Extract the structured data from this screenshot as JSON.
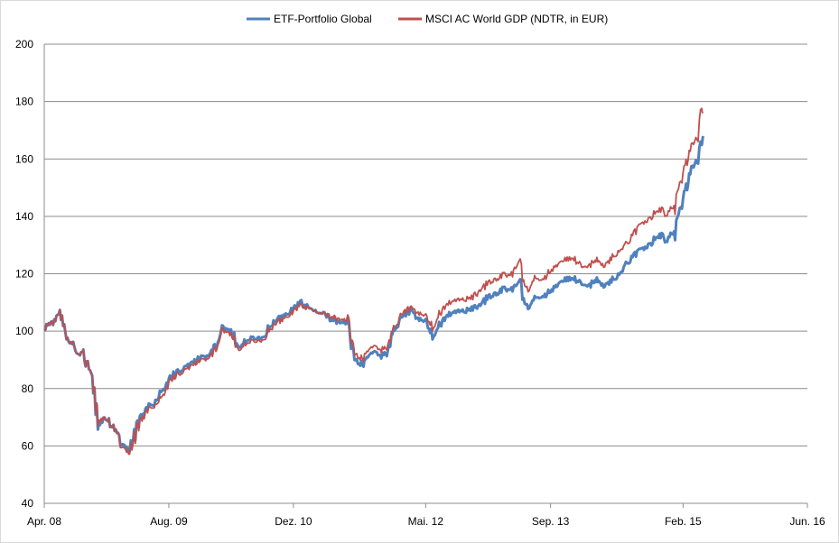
{
  "chart_data": {
    "type": "line",
    "title": "",
    "xlabel": "",
    "ylabel": "",
    "xlim": [
      "2008-04-01",
      "2016-06-01"
    ],
    "ylim": [
      40,
      200
    ],
    "y_ticks": [
      40,
      60,
      80,
      100,
      120,
      140,
      160,
      180,
      200
    ],
    "x_ticks": [
      {
        "label": "Apr. 08",
        "date": "2008-04-01"
      },
      {
        "label": "Aug. 09",
        "date": "2009-08-01"
      },
      {
        "label": "Dez. 10",
        "date": "2010-12-01"
      },
      {
        "label": "Mai. 12",
        "date": "2012-05-01"
      },
      {
        "label": "Sep. 13",
        "date": "2013-09-01"
      },
      {
        "label": "Feb. 15",
        "date": "2015-02-01"
      },
      {
        "label": "Jun. 16",
        "date": "2016-06-01"
      }
    ],
    "grid": "horizontal",
    "legend_position": "top",
    "series": [
      {
        "name": "ETF-Portfolio Global",
        "color": "#4f81bd",
        "points": [
          [
            "2008-04-01",
            101
          ],
          [
            "2008-05-01",
            103
          ],
          [
            "2008-06-01",
            106
          ],
          [
            "2008-07-01",
            98
          ],
          [
            "2008-08-01",
            93
          ],
          [
            "2008-09-01",
            92
          ],
          [
            "2008-10-01",
            84
          ],
          [
            "2008-11-01",
            68
          ],
          [
            "2008-12-01",
            70
          ],
          [
            "2009-01-01",
            65
          ],
          [
            "2009-02-01",
            60
          ],
          [
            "2009-03-01",
            58
          ],
          [
            "2009-04-01",
            67
          ],
          [
            "2009-05-01",
            73
          ],
          [
            "2009-06-01",
            75
          ],
          [
            "2009-07-01",
            79
          ],
          [
            "2009-08-01",
            83
          ],
          [
            "2009-09-01",
            86
          ],
          [
            "2009-10-01",
            87
          ],
          [
            "2009-11-01",
            89
          ],
          [
            "2009-12-01",
            91
          ],
          [
            "2010-01-01",
            91
          ],
          [
            "2010-02-01",
            95
          ],
          [
            "2010-03-01",
            101
          ],
          [
            "2010-04-01",
            100
          ],
          [
            "2010-05-01",
            95
          ],
          [
            "2010-06-01",
            97
          ],
          [
            "2010-07-01",
            98
          ],
          [
            "2010-08-01",
            97
          ],
          [
            "2010-09-01",
            102
          ],
          [
            "2010-10-01",
            104
          ],
          [
            "2010-11-01",
            106
          ],
          [
            "2010-12-01",
            108
          ],
          [
            "2011-01-01",
            110
          ],
          [
            "2011-02-01",
            108
          ],
          [
            "2011-03-01",
            107
          ],
          [
            "2011-04-01",
            106
          ],
          [
            "2011-05-01",
            104
          ],
          [
            "2011-06-01",
            103
          ],
          [
            "2011-07-01",
            103
          ],
          [
            "2011-08-01",
            90
          ],
          [
            "2011-09-01",
            88
          ],
          [
            "2011-10-01",
            93
          ],
          [
            "2011-11-01",
            91
          ],
          [
            "2011-12-01",
            93
          ],
          [
            "2012-01-01",
            100
          ],
          [
            "2012-02-01",
            105
          ],
          [
            "2012-03-01",
            107
          ],
          [
            "2012-04-01",
            104
          ],
          [
            "2012-05-01",
            103
          ],
          [
            "2012-06-01",
            98
          ],
          [
            "2012-07-01",
            103
          ],
          [
            "2012-08-01",
            106
          ],
          [
            "2012-09-01",
            107
          ],
          [
            "2012-10-01",
            107
          ],
          [
            "2012-11-01",
            108
          ],
          [
            "2012-12-01",
            109
          ],
          [
            "2013-01-01",
            112
          ],
          [
            "2013-02-01",
            113
          ],
          [
            "2013-03-01",
            115
          ],
          [
            "2013-04-01",
            114
          ],
          [
            "2013-05-01",
            117
          ],
          [
            "2013-06-01",
            108
          ],
          [
            "2013-07-01",
            112
          ],
          [
            "2013-08-01",
            112
          ],
          [
            "2013-09-01",
            114
          ],
          [
            "2013-10-01",
            117
          ],
          [
            "2013-11-01",
            118
          ],
          [
            "2013-12-01",
            119
          ],
          [
            "2014-01-01",
            116
          ],
          [
            "2014-02-01",
            116
          ],
          [
            "2014-03-01",
            118
          ],
          [
            "2014-04-01",
            116
          ],
          [
            "2014-05-01",
            118
          ],
          [
            "2014-06-01",
            120
          ],
          [
            "2014-07-01",
            124
          ],
          [
            "2014-08-01",
            127
          ],
          [
            "2014-09-01",
            129
          ],
          [
            "2014-10-01",
            131
          ],
          [
            "2014-11-01",
            134
          ],
          [
            "2014-12-01",
            131
          ],
          [
            "2015-01-01",
            135
          ],
          [
            "2015-02-01",
            147
          ],
          [
            "2015-03-01",
            155
          ],
          [
            "2015-04-01",
            160
          ],
          [
            "2015-04-20",
            168
          ]
        ]
      },
      {
        "name": "MSCI AC World GDP (NDTR, in EUR)",
        "color": "#c0504d",
        "points": [
          [
            "2008-04-01",
            101
          ],
          [
            "2008-05-01",
            103
          ],
          [
            "2008-06-01",
            106
          ],
          [
            "2008-07-01",
            98
          ],
          [
            "2008-08-01",
            93
          ],
          [
            "2008-09-01",
            92
          ],
          [
            "2008-10-01",
            84
          ],
          [
            "2008-11-01",
            69
          ],
          [
            "2008-12-01",
            70
          ],
          [
            "2009-01-01",
            65
          ],
          [
            "2009-02-01",
            59
          ],
          [
            "2009-03-01",
            57
          ],
          [
            "2009-04-01",
            66
          ],
          [
            "2009-05-01",
            72
          ],
          [
            "2009-06-01",
            74
          ],
          [
            "2009-07-01",
            77
          ],
          [
            "2009-08-01",
            82
          ],
          [
            "2009-09-01",
            85
          ],
          [
            "2009-10-01",
            86
          ],
          [
            "2009-11-01",
            88
          ],
          [
            "2009-12-01",
            90
          ],
          [
            "2010-01-01",
            90
          ],
          [
            "2010-02-01",
            94
          ],
          [
            "2010-03-01",
            100
          ],
          [
            "2010-04-01",
            99
          ],
          [
            "2010-05-01",
            94
          ],
          [
            "2010-06-01",
            96
          ],
          [
            "2010-07-01",
            97
          ],
          [
            "2010-08-01",
            96
          ],
          [
            "2010-09-01",
            101
          ],
          [
            "2010-10-01",
            103
          ],
          [
            "2010-11-01",
            105
          ],
          [
            "2010-12-01",
            107
          ],
          [
            "2011-01-01",
            109
          ],
          [
            "2011-02-01",
            108
          ],
          [
            "2011-03-01",
            107
          ],
          [
            "2011-04-01",
            106
          ],
          [
            "2011-05-01",
            105
          ],
          [
            "2011-06-01",
            104
          ],
          [
            "2011-07-01",
            104
          ],
          [
            "2011-08-01",
            92
          ],
          [
            "2011-09-01",
            90
          ],
          [
            "2011-10-01",
            95
          ],
          [
            "2011-11-01",
            93
          ],
          [
            "2011-12-01",
            95
          ],
          [
            "2012-01-01",
            101
          ],
          [
            "2012-02-01",
            106
          ],
          [
            "2012-03-01",
            108
          ],
          [
            "2012-04-01",
            106
          ],
          [
            "2012-05-01",
            105
          ],
          [
            "2012-06-01",
            101
          ],
          [
            "2012-07-01",
            107
          ],
          [
            "2012-08-01",
            110
          ],
          [
            "2012-09-01",
            111
          ],
          [
            "2012-10-01",
            111
          ],
          [
            "2012-11-01",
            112
          ],
          [
            "2012-12-01",
            114
          ],
          [
            "2013-01-01",
            117
          ],
          [
            "2013-02-01",
            118
          ],
          [
            "2013-03-01",
            120
          ],
          [
            "2013-04-01",
            119
          ],
          [
            "2013-05-01",
            124
          ],
          [
            "2013-06-01",
            114
          ],
          [
            "2013-07-01",
            119
          ],
          [
            "2013-08-01",
            118
          ],
          [
            "2013-09-01",
            121
          ],
          [
            "2013-10-01",
            124
          ],
          [
            "2013-11-01",
            125
          ],
          [
            "2013-12-01",
            126
          ],
          [
            "2014-01-01",
            122
          ],
          [
            "2014-02-01",
            123
          ],
          [
            "2014-03-01",
            125
          ],
          [
            "2014-04-01",
            123
          ],
          [
            "2014-05-01",
            126
          ],
          [
            "2014-06-01",
            128
          ],
          [
            "2014-07-01",
            131
          ],
          [
            "2014-08-01",
            135
          ],
          [
            "2014-09-01",
            138
          ],
          [
            "2014-10-01",
            140
          ],
          [
            "2014-11-01",
            143
          ],
          [
            "2014-12-01",
            140
          ],
          [
            "2015-01-01",
            144
          ],
          [
            "2015-02-01",
            156
          ],
          [
            "2015-03-01",
            163
          ],
          [
            "2015-04-01",
            168
          ],
          [
            "2015-04-15",
            178
          ],
          [
            "2015-04-20",
            176
          ]
        ]
      }
    ]
  }
}
